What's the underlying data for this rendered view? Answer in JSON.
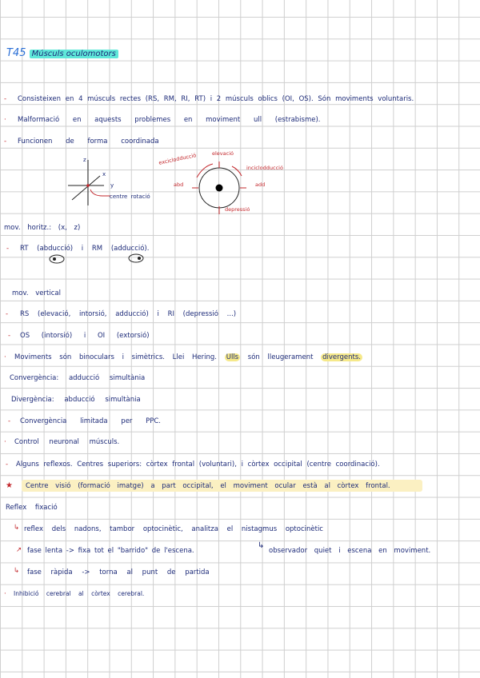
{
  "title": {
    "code": "T45",
    "text": "Músculs oculomotors"
  },
  "lines": {
    "l1": "Consisteixen en 4 músculs rectes (RS, RM, RI, RT) i 2 músculs oblics (OI, OS). Són moviments voluntaris.",
    "l2": "Malformació en aquests problemes en moviment ull (estrabisme).",
    "l3": "Funcionen de forma coordinada",
    "l4": "mov. horitz.: (x, z)",
    "l5": "RT (abducció) i RM (adducció).",
    "l6": "mov. vertical",
    "l7": "RS (elevació, intorsió, adducció) i RI (depressió ...)",
    "l8": "OS (intorsió) i OI (extorsió)",
    "l9a": "Moviments són binoculars i simètrics. Llei Hering.",
    "l9b": "Ulls",
    "l9c": "són lleugerament",
    "l9d": "divergents.",
    "l10": "Convergència: adducció simultània",
    "l11": "Divergència: abducció simultània",
    "l12": "Convergència limitada per PPC.",
    "l13": "Control neuronal músculs.",
    "l14": "Alguns reflexos. Centres superiors: còrtex frontal (voluntari), i còrtex occipital (centre coordinació).",
    "l15": "Centre visió (formació imatge) a part occipital, el moviment ocular està al còrtex frontal.",
    "l16": "Reflex fixació",
    "l17": "reflex dels nadons, tambor optocinètic, analitza el nistagmus optocinètic",
    "l18": "fase lenta -> fixa tot el \"barrido\" de l'escena.",
    "l18b": "observador quiet i escena en moviment.",
    "l19": "fase ràpida -> torna al punt de partida",
    "l20": "Inhibició cerebral al còrtex cerebral."
  },
  "diagram_axes": {
    "z": "z",
    "x": "x",
    "y": "y",
    "label": "centre rotació"
  },
  "diagram_eye": {
    "up": "elevació",
    "down": "depressió",
    "left": "abd",
    "right": "add",
    "top_left": "exciclodducció",
    "top_right": "inciclodducció"
  },
  "colors": {
    "ink": "#1c2a78",
    "red": "#c3282d",
    "title_blue": "#2a6fd6",
    "teal": "#5fe8d9",
    "yellow": "#f6e98a",
    "pale_yellow": "#fbf0c2"
  }
}
